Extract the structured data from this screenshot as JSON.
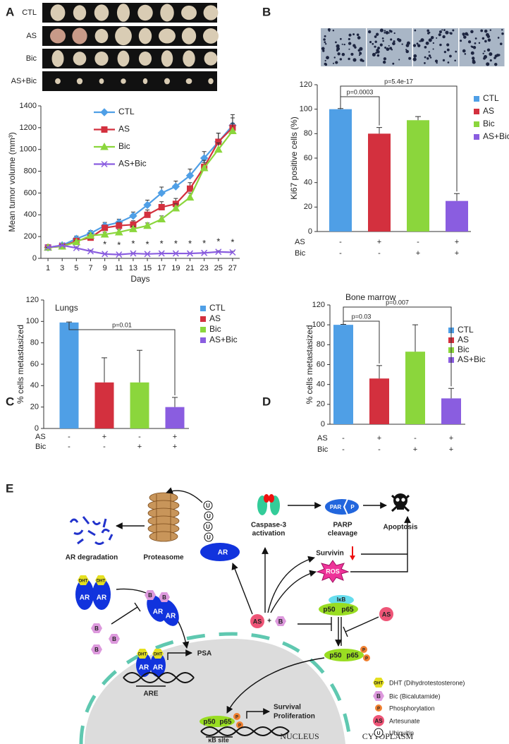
{
  "chart_data": [
    {
      "panel": "A",
      "type": "line",
      "row_labels": [
        "CTL",
        "AS",
        "Bic",
        "AS+Bic"
      ],
      "x": [
        1,
        3,
        5,
        7,
        9,
        11,
        13,
        15,
        17,
        19,
        21,
        23,
        25,
        27
      ],
      "xlim": [
        0,
        28
      ],
      "xticks": [
        1,
        3,
        5,
        7,
        9,
        11,
        13,
        15,
        17,
        19,
        21,
        23,
        25,
        27
      ],
      "ylim": [
        0,
        1400
      ],
      "yticks": [
        0,
        200,
        400,
        600,
        800,
        1000,
        1200,
        1400
      ],
      "xlabel": "Days",
      "ylabel": "Mean tumor volume (mm³)",
      "series": [
        {
          "name": "CTL",
          "color": "#4f9fe6",
          "marker": "diamond",
          "values": [
            100,
            120,
            180,
            230,
            300,
            330,
            390,
            490,
            600,
            660,
            760,
            920,
            1070,
            1220
          ],
          "errors": [
            0,
            15,
            25,
            25,
            30,
            30,
            35,
            45,
            55,
            50,
            60,
            60,
            80,
            100
          ]
        },
        {
          "name": "AS",
          "color": "#d3303e",
          "marker": "square",
          "values": [
            100,
            110,
            160,
            190,
            280,
            300,
            310,
            400,
            470,
            500,
            640,
            840,
            1070,
            1200
          ],
          "errors": [
            0,
            10,
            15,
            20,
            25,
            30,
            35,
            45,
            50,
            50,
            55,
            60,
            80,
            90
          ]
        },
        {
          "name": "Bic",
          "color": "#8bd63c",
          "marker": "triangle",
          "values": [
            100,
            110,
            150,
            210,
            220,
            240,
            270,
            300,
            360,
            460,
            560,
            830,
            1000,
            1170
          ],
          "errors": [
            0,
            10,
            15,
            20,
            20,
            25,
            25,
            25,
            30,
            40,
            40,
            50,
            60,
            70
          ]
        },
        {
          "name": "AS+Bic",
          "color": "#8a5de0",
          "marker": "x",
          "values": [
            100,
            120,
            95,
            65,
            40,
            35,
            45,
            40,
            45,
            45,
            45,
            50,
            60,
            55
          ],
          "errors": [
            0,
            10,
            10,
            10,
            5,
            5,
            5,
            5,
            5,
            5,
            5,
            5,
            10,
            10
          ]
        }
      ],
      "significance": {
        "label": "*",
        "x": [
          9,
          11,
          13,
          15,
          17,
          19,
          21,
          23,
          25,
          27
        ]
      }
    },
    {
      "panel": "B",
      "type": "bar",
      "ylim": [
        0,
        120
      ],
      "yticks": [
        0,
        20,
        40,
        60,
        80,
        100,
        120
      ],
      "ylabel": "Ki67 positive cells (%)",
      "series": [
        {
          "name": "CTL",
          "color": "#4f9fe6",
          "values": [
            100
          ],
          "errors": [
            0.5
          ]
        },
        {
          "name": "AS",
          "color": "#d3303e",
          "values": [
            80
          ],
          "errors": [
            5
          ]
        },
        {
          "name": "Bic",
          "color": "#8bd63c",
          "values": [
            91
          ],
          "errors": [
            3
          ]
        },
        {
          "name": "AS+Bic",
          "color": "#8a5de0",
          "values": [
            25
          ],
          "errors": [
            6
          ]
        }
      ],
      "comparisons": [
        {
          "between": [
            "CTL",
            "AS"
          ],
          "label": "p=0.0003"
        },
        {
          "between": [
            "CTL",
            "AS+Bic"
          ],
          "label": "p=5.4e-17"
        }
      ],
      "treatments": [
        {
          "label": "AS",
          "signs": [
            "-",
            "+",
            "-",
            "+"
          ]
        },
        {
          "label": "Bic",
          "signs": [
            "-",
            "-",
            "+",
            "+"
          ]
        }
      ]
    },
    {
      "panel": "C",
      "type": "bar",
      "title": "Lungs",
      "ylim": [
        0,
        120
      ],
      "yticks": [
        0,
        20,
        40,
        60,
        80,
        100,
        120
      ],
      "ylabel": "% cells metastasized",
      "series": [
        {
          "name": "CTL",
          "color": "#4f9fe6",
          "values": [
            99
          ],
          "errors": [
            0.5
          ]
        },
        {
          "name": "AS",
          "color": "#d3303e",
          "values": [
            43
          ],
          "errors": [
            23
          ]
        },
        {
          "name": "Bic",
          "color": "#8bd63c",
          "values": [
            43
          ],
          "errors": [
            30
          ]
        },
        {
          "name": "AS+Bic",
          "color": "#8a5de0",
          "values": [
            20
          ],
          "errors": [
            9
          ]
        }
      ],
      "comparisons": [
        {
          "between": [
            "CTL",
            "AS+Bic"
          ],
          "label": "p=0.01"
        }
      ],
      "treatments": [
        {
          "label": "AS",
          "signs": [
            "-",
            "+",
            "-",
            "+"
          ]
        },
        {
          "label": "Bic",
          "signs": [
            "-",
            "-",
            "+",
            "+"
          ]
        }
      ]
    },
    {
      "panel": "D",
      "type": "bar",
      "title": "Bone marrow",
      "ylim": [
        0,
        120
      ],
      "yticks": [
        0,
        20,
        40,
        60,
        80,
        100,
        120
      ],
      "ylabel": "% cells metastasized",
      "series": [
        {
          "name": "CTL",
          "color": "#4f9fe6",
          "values": [
            100
          ],
          "errors": [
            0.5
          ]
        },
        {
          "name": "AS",
          "color": "#d3303e",
          "values": [
            46
          ],
          "errors": [
            13
          ]
        },
        {
          "name": "Bic",
          "color": "#8bd63c",
          "values": [
            73
          ],
          "errors": [
            27
          ]
        },
        {
          "name": "AS+Bic",
          "color": "#8a5de0",
          "values": [
            26
          ],
          "errors": [
            10
          ]
        }
      ],
      "comparisons": [
        {
          "between": [
            "CTL",
            "AS"
          ],
          "label": "p=0.03"
        },
        {
          "between": [
            "CTL",
            "AS+Bic"
          ],
          "label": "p=0.007"
        }
      ],
      "treatments": [
        {
          "label": "AS",
          "signs": [
            "-",
            "+",
            "-",
            "+"
          ]
        },
        {
          "label": "Bic",
          "signs": [
            "-",
            "-",
            "+",
            "+"
          ]
        }
      ]
    }
  ],
  "diagram": {
    "panel": "E",
    "ar_degradation": "AR degradation",
    "proteasome": "Proteasome",
    "ubiquitin": "U",
    "ar": "AR",
    "caspase": [
      "Caspase-3",
      "activation"
    ],
    "par": "PAR",
    "phospho": "P",
    "parp_cleavage": [
      "PARP",
      "cleavage"
    ],
    "apoptosis": "Apoptosis",
    "survivin": "Survivin",
    "ros": "ROS",
    "ikb": "IκB",
    "p50": "p50",
    "p65": "p65",
    "artesunate": "AS",
    "plus": "+",
    "bic": "B",
    "dht": "DHT",
    "psa": "PSA",
    "are": "ARE",
    "outcome": [
      "Survival",
      "Proliferation"
    ],
    "kb_site": "κB site",
    "nucleus": "NUCLEUS",
    "cytoplasm": "CYTOPLASM",
    "legend": [
      {
        "symbol": "DHT",
        "text": "DHT (Dihydrotestosterone)"
      },
      {
        "symbol": "B",
        "text": "Bic (Bicalutamide)"
      },
      {
        "symbol": "P",
        "text": "Phosphorylation"
      },
      {
        "symbol": "AS",
        "text": "Artesunate"
      },
      {
        "symbol": "U",
        "text": "Ubiquitin"
      }
    ]
  }
}
